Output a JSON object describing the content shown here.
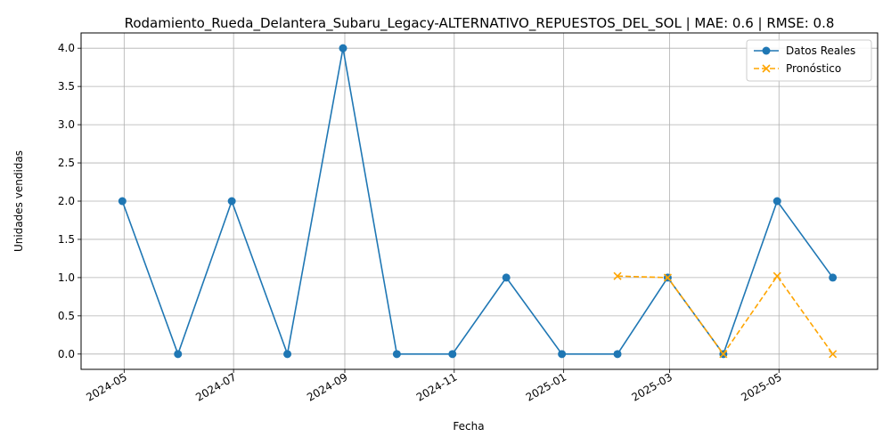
{
  "chart_data": {
    "type": "line",
    "title": "Rodamiento_Rueda_Delantera_Subaru_Legacy-ALTERNATIVO_REPUESTOS_DEL_SOL | MAE: 0.6 | RMSE: 0.8",
    "xlabel": "Fecha",
    "ylabel": "Unidades vendidas",
    "xlim": [
      "2024-04-07",
      "2025-06-25"
    ],
    "ylim": [
      -0.2,
      4.2
    ],
    "x_ticks": [
      "2024-05",
      "2024-07",
      "2024-09",
      "2024-11",
      "2025-01",
      "2025-03",
      "2025-05"
    ],
    "y_ticks": [
      "0.0",
      "0.5",
      "1.0",
      "1.5",
      "2.0",
      "2.5",
      "3.0",
      "3.5",
      "4.0"
    ],
    "grid": true,
    "legend_position": "top-right",
    "series": [
      {
        "name": "Datos Reales",
        "color": "#1f77b4",
        "style": "solid",
        "marker": "circle",
        "x": [
          "2024-04-30",
          "2024-05-31",
          "2024-06-30",
          "2024-07-31",
          "2024-08-31",
          "2024-09-30",
          "2024-10-31",
          "2024-11-30",
          "2024-12-31",
          "2025-01-31",
          "2025-02-28",
          "2025-03-31",
          "2025-04-30",
          "2025-05-31"
        ],
        "values": [
          2,
          0,
          2,
          0,
          4,
          0,
          0,
          1,
          0,
          0,
          1,
          0,
          2,
          1
        ]
      },
      {
        "name": "Pronóstico",
        "color": "#ffa500",
        "style": "dashed",
        "marker": "x",
        "x": [
          "2025-01-31",
          "2025-02-28",
          "2025-03-31",
          "2025-04-30",
          "2025-05-31"
        ],
        "values": [
          1.02,
          1.0,
          0.0,
          1.02,
          0.0
        ]
      }
    ]
  }
}
